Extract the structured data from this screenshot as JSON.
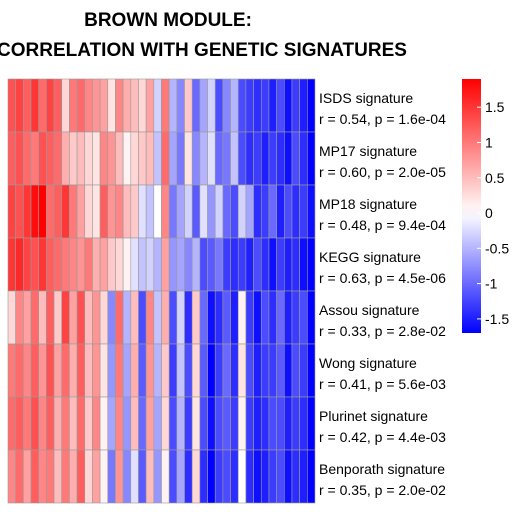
{
  "chart_data": {
    "type": "heatmap",
    "title": [
      "BROWN MODULE:",
      "CORRELATION WITH GENETIC SIGNATURES"
    ],
    "rows": [
      {
        "name": "ISDS signature",
        "stats": "r = 0.54, p = 1.6e-04",
        "values": [
          1.3,
          1.4,
          1.2,
          1.5,
          1.1,
          1.4,
          1.2,
          0.3,
          1.0,
          1.1,
          0.9,
          0.8,
          0.7,
          0.2,
          0.9,
          0.6,
          0.5,
          0.3,
          0.7,
          -0.3,
          1.0,
          -0.5,
          -0.8,
          0.4,
          -1.0,
          -0.6,
          -0.3,
          -1.2,
          -0.8,
          -0.5,
          -1.2,
          -1.3,
          -1.4,
          -1.3,
          -1.5,
          -1.2,
          -1.6,
          -1.3,
          -1.5,
          -1.7
        ]
      },
      {
        "name": "MP17 signature",
        "stats": "r = 0.60, p = 2.0e-05",
        "values": [
          1.2,
          1.3,
          1.1,
          1.0,
          1.3,
          1.2,
          1.1,
          0.6,
          0.4,
          0.5,
          0.3,
          0.2,
          0.9,
          0.8,
          0.5,
          0.1,
          0.3,
          0.4,
          0.5,
          -0.4,
          1.1,
          -0.6,
          -0.9,
          0.2,
          -0.8,
          -0.5,
          -0.2,
          -1.0,
          -0.9,
          -0.4,
          -1.2,
          -1.4,
          -1.3,
          -1.5,
          -1.3,
          -1.4,
          -1.6,
          -1.2,
          -1.4,
          -1.8
        ]
      },
      {
        "name": "MP18 signature",
        "stats": "r = 0.48, p = 9.4e-04",
        "values": [
          1.4,
          1.3,
          1.5,
          1.8,
          1.9,
          1.1,
          1.2,
          1.5,
          1.0,
          0.7,
          0.3,
          0.2,
          1.2,
          0.8,
          0.9,
          0.5,
          0.4,
          -0.2,
          -0.4,
          0.0,
          0.9,
          -0.9,
          -0.6,
          -0.3,
          -1.1,
          -0.2,
          -0.7,
          -0.3,
          -1.0,
          -1.2,
          -0.3,
          -0.6,
          -1.4,
          -1.3,
          -1.0,
          -1.5,
          -1.2,
          -1.4,
          -1.3,
          -1.6
        ]
      },
      {
        "name": "KEGG signature",
        "stats": "r = 0.63, p = 4.5e-06",
        "values": [
          1.5,
          1.6,
          1.4,
          1.3,
          1.5,
          1.2,
          1.1,
          1.0,
          0.9,
          0.8,
          1.0,
          0.6,
          0.7,
          0.4,
          0.3,
          0.1,
          -0.2,
          -0.4,
          -0.3,
          -0.5,
          0.7,
          -0.7,
          -0.6,
          -0.8,
          -0.5,
          -1.2,
          -1.1,
          -0.9,
          -1.3,
          -1.4,
          -1.3,
          -1.5,
          -1.2,
          -1.4,
          -1.6,
          -1.3,
          -1.5,
          -1.4,
          -1.6,
          -1.7
        ]
      },
      {
        "name": "Assou signature",
        "stats": "r = 0.33, p = 2.8e-02",
        "values": [
          0.3,
          0.9,
          0.7,
          1.1,
          0.5,
          1.2,
          0.4,
          1.4,
          0.7,
          1.3,
          0.5,
          0.8,
          0.3,
          -0.8,
          1.1,
          -0.5,
          0.5,
          -1.2,
          0.9,
          -0.4,
          0.6,
          -1.2,
          -0.3,
          -1.4,
          0.4,
          -1.0,
          -1.6,
          -1.4,
          -1.1,
          -1.5,
          0.1,
          -1.3,
          -1.6,
          -1.2,
          -1.4,
          -1.0,
          -1.5,
          -1.3,
          -1.2,
          -1.7
        ]
      },
      {
        "name": "Wong signature",
        "stats": "r = 0.41, p = 5.6e-03",
        "values": [
          1.0,
          1.1,
          0.9,
          1.2,
          0.8,
          1.3,
          0.7,
          1.1,
          0.6,
          1.2,
          0.5,
          0.8,
          0.2,
          -0.7,
          1.0,
          -0.6,
          0.6,
          -1.1,
          0.8,
          -0.5,
          0.4,
          -1.3,
          -0.4,
          -1.2,
          0.3,
          -1.1,
          -1.7,
          -1.3,
          -1.0,
          -1.4,
          0.2,
          -1.2,
          -1.5,
          -1.3,
          -1.3,
          -1.1,
          -1.6,
          -1.2,
          -1.3,
          -1.8
        ]
      },
      {
        "name": "Plurinet signature",
        "stats": "r = 0.42, p = 4.4e-03",
        "values": [
          1.1,
          1.2,
          1.0,
          1.3,
          0.9,
          1.2,
          0.6,
          1.0,
          0.5,
          1.1,
          0.4,
          0.9,
          0.1,
          -0.6,
          0.9,
          -0.7,
          0.5,
          -1.0,
          0.7,
          -0.6,
          0.3,
          -1.2,
          -0.5,
          -1.3,
          0.2,
          -1.2,
          -1.6,
          -1.2,
          -1.1,
          -1.3,
          0.1,
          -1.3,
          -1.5,
          -1.4,
          -1.2,
          -1.2,
          -1.5,
          -1.3,
          -1.4,
          -1.7
        ]
      },
      {
        "name": "Benporath signature",
        "stats": "r = 0.35, p = 2.0e-02",
        "values": [
          0.9,
          1.1,
          0.7,
          1.2,
          0.9,
          1.0,
          0.5,
          1.0,
          0.6,
          1.2,
          0.3,
          0.7,
          0.1,
          -0.9,
          0.8,
          -0.8,
          -0.2,
          -1.1,
          0.5,
          -0.7,
          0.1,
          -1.2,
          -0.6,
          -1.4,
          0.3,
          -1.4,
          -1.8,
          -1.3,
          -1.2,
          -1.4,
          0.0,
          -1.4,
          -1.6,
          -1.5,
          -1.3,
          -1.2,
          -1.6,
          -1.4,
          -1.5,
          -1.8
        ]
      }
    ],
    "color_scale": {
      "min": -1.7,
      "max": 1.9,
      "low": "#0000ff",
      "mid": "#ffffff",
      "high": "#ff0000"
    },
    "colorbar_ticks": [
      "1.5",
      "1",
      "0.5",
      "0",
      "-0.5",
      "-1",
      "-1.5"
    ],
    "colorbar_tick_values": [
      1.5,
      1,
      0.5,
      0,
      -0.5,
      -1,
      -1.5
    ]
  }
}
